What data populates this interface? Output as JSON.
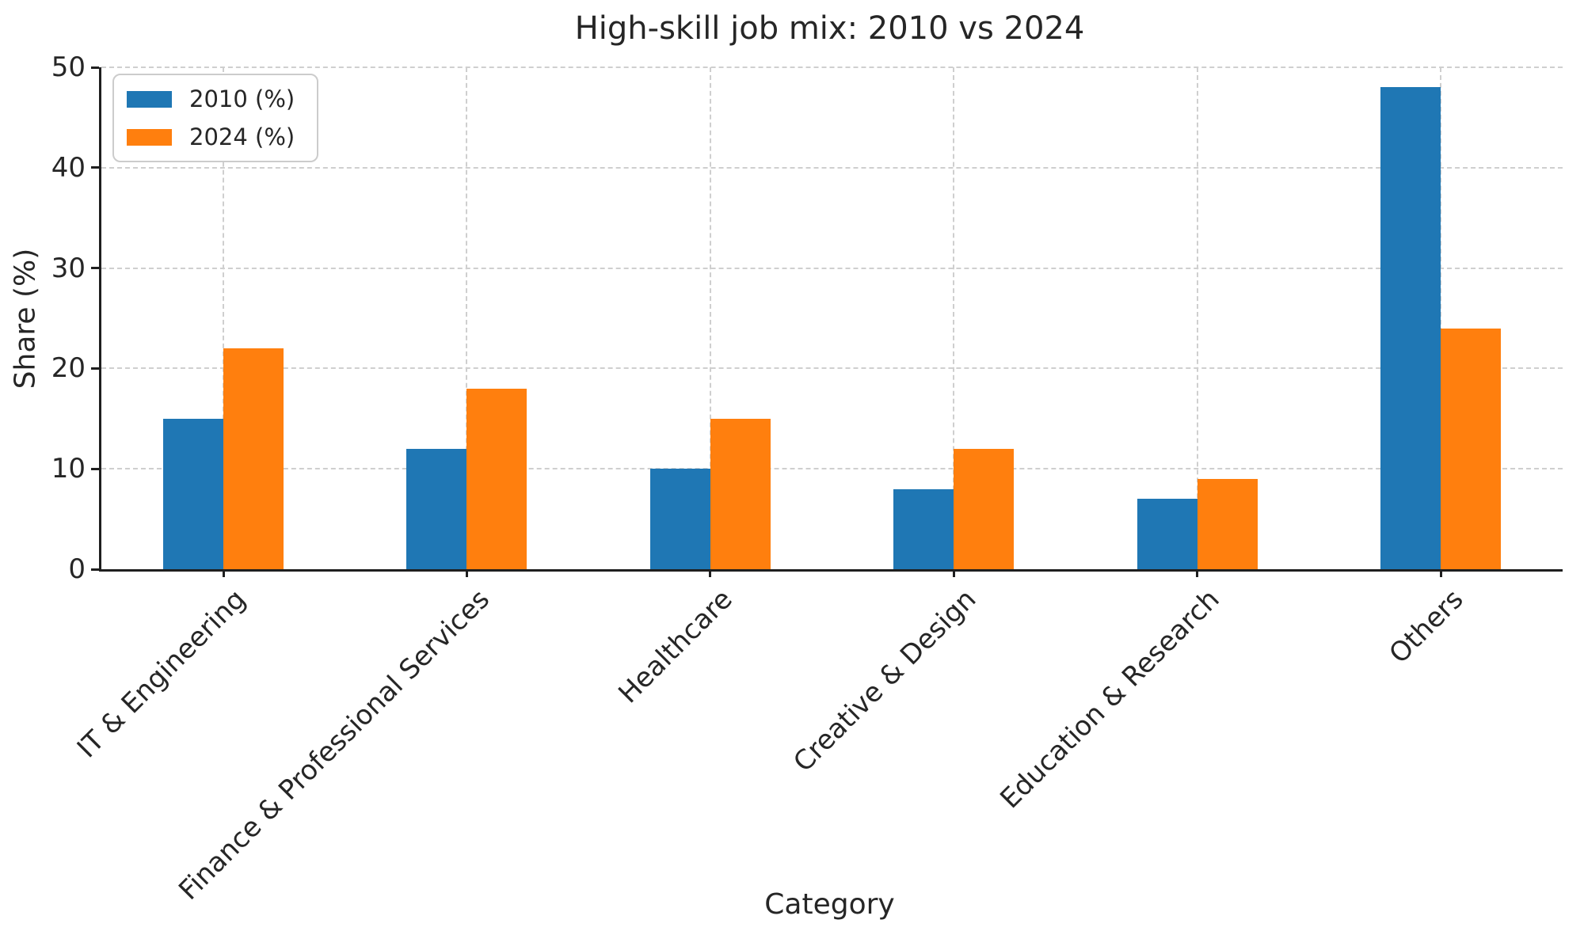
{
  "title": "High-skill job mix: 2010 vs 2024",
  "chart_data": {
    "type": "bar",
    "title": "High-skill job mix: 2010 vs 2024",
    "categories": [
      "IT & Engineering",
      "Finance & Professional Services",
      "Healthcare",
      "Creative & Design",
      "Education & Research",
      "Others"
    ],
    "series": [
      {
        "name": "2010 (%)",
        "color": "#1f77b4",
        "values": [
          15,
          12,
          10,
          8,
          7,
          48
        ]
      },
      {
        "name": "2024 (%)",
        "color": "#ff7f0e",
        "values": [
          22,
          18,
          15,
          12,
          9,
          24
        ]
      }
    ],
    "xlabel": "Category",
    "ylabel": "Share (%)",
    "ylim": [
      0,
      50
    ],
    "yticks": [
      0,
      10,
      20,
      30,
      40,
      50
    ],
    "grid": true,
    "grid_style": "dashed",
    "legend_position": "upper left"
  }
}
